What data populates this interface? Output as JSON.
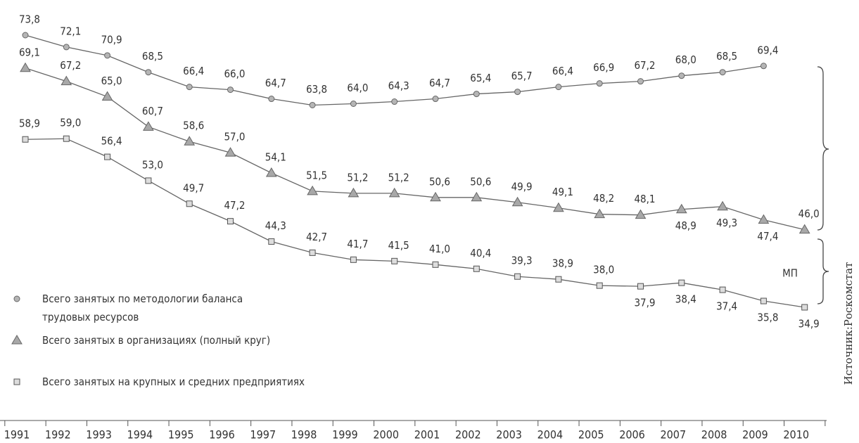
{
  "chart_data": {
    "type": "line",
    "categories": [
      "1991",
      "1992",
      "1993",
      "1994",
      "1995",
      "1996",
      "1997",
      "1998",
      "1999",
      "2000",
      "2001",
      "2002",
      "2003",
      "2004",
      "2005",
      "2006",
      "2007",
      "2008",
      "2009",
      "2010"
    ],
    "series": [
      {
        "name": "Всего занятых по методологии баланса трудовых ресурсов",
        "color": "#b5b5b5",
        "marker": "circle",
        "values": [
          73.8,
          72.1,
          70.9,
          68.5,
          66.4,
          66.0,
          64.7,
          63.8,
          64.0,
          64.3,
          64.7,
          65.4,
          65.7,
          66.4,
          66.9,
          67.2,
          68.0,
          68.5,
          69.4,
          null
        ],
        "value_labels": [
          "73,8",
          "72,1",
          "70,9",
          "68,5",
          "66,4",
          "66,0",
          "64,7",
          "63,8",
          "64,0",
          "64,3",
          "64,7",
          "65,4",
          "65,7",
          "66,4",
          "66,9",
          "67,2",
          "68,0",
          "68,5",
          "69,4",
          null
        ]
      },
      {
        "name": "Всего занятых в организациях (полный круг)",
        "color": "#a8a8a8",
        "marker": "triangle",
        "values": [
          69.1,
          67.2,
          65.0,
          60.7,
          58.6,
          57.0,
          54.1,
          51.5,
          51.2,
          51.2,
          50.6,
          50.6,
          49.9,
          49.1,
          48.2,
          48.1,
          48.9,
          49.3,
          47.4,
          46.0
        ],
        "value_labels": [
          "69,1",
          "67,2",
          "65,0",
          "60,7",
          "58,6",
          "57,0",
          "54,1",
          "51,5",
          "51,2",
          "51,2",
          "50,6",
          "50,6",
          "49,9",
          "49,1",
          "48,2",
          "48,1",
          "48,9",
          "49,3",
          "47,4",
          "46,0"
        ]
      },
      {
        "name": "Всего занятых на крупных и средних предприятиях",
        "color": "#dddddd",
        "marker": "square",
        "values": [
          58.9,
          59.0,
          56.4,
          53.0,
          49.7,
          47.2,
          44.3,
          42.7,
          41.7,
          41.5,
          41.0,
          40.4,
          39.3,
          38.9,
          38.0,
          37.9,
          38.4,
          37.4,
          35.8,
          34.9
        ],
        "value_labels": [
          "58,9",
          "59,0",
          "56,4",
          "53,0",
          "49,7",
          "47,2",
          "44,3",
          "42,7",
          "41,7",
          "41,5",
          "41,0",
          "40,4",
          "39,3",
          "38,9",
          "38,0",
          "37,9",
          "38,4",
          "37,4",
          "35,8",
          "34,9"
        ]
      }
    ],
    "annotations": [
      "МП"
    ],
    "source": "Источник:Роскомстат"
  }
}
